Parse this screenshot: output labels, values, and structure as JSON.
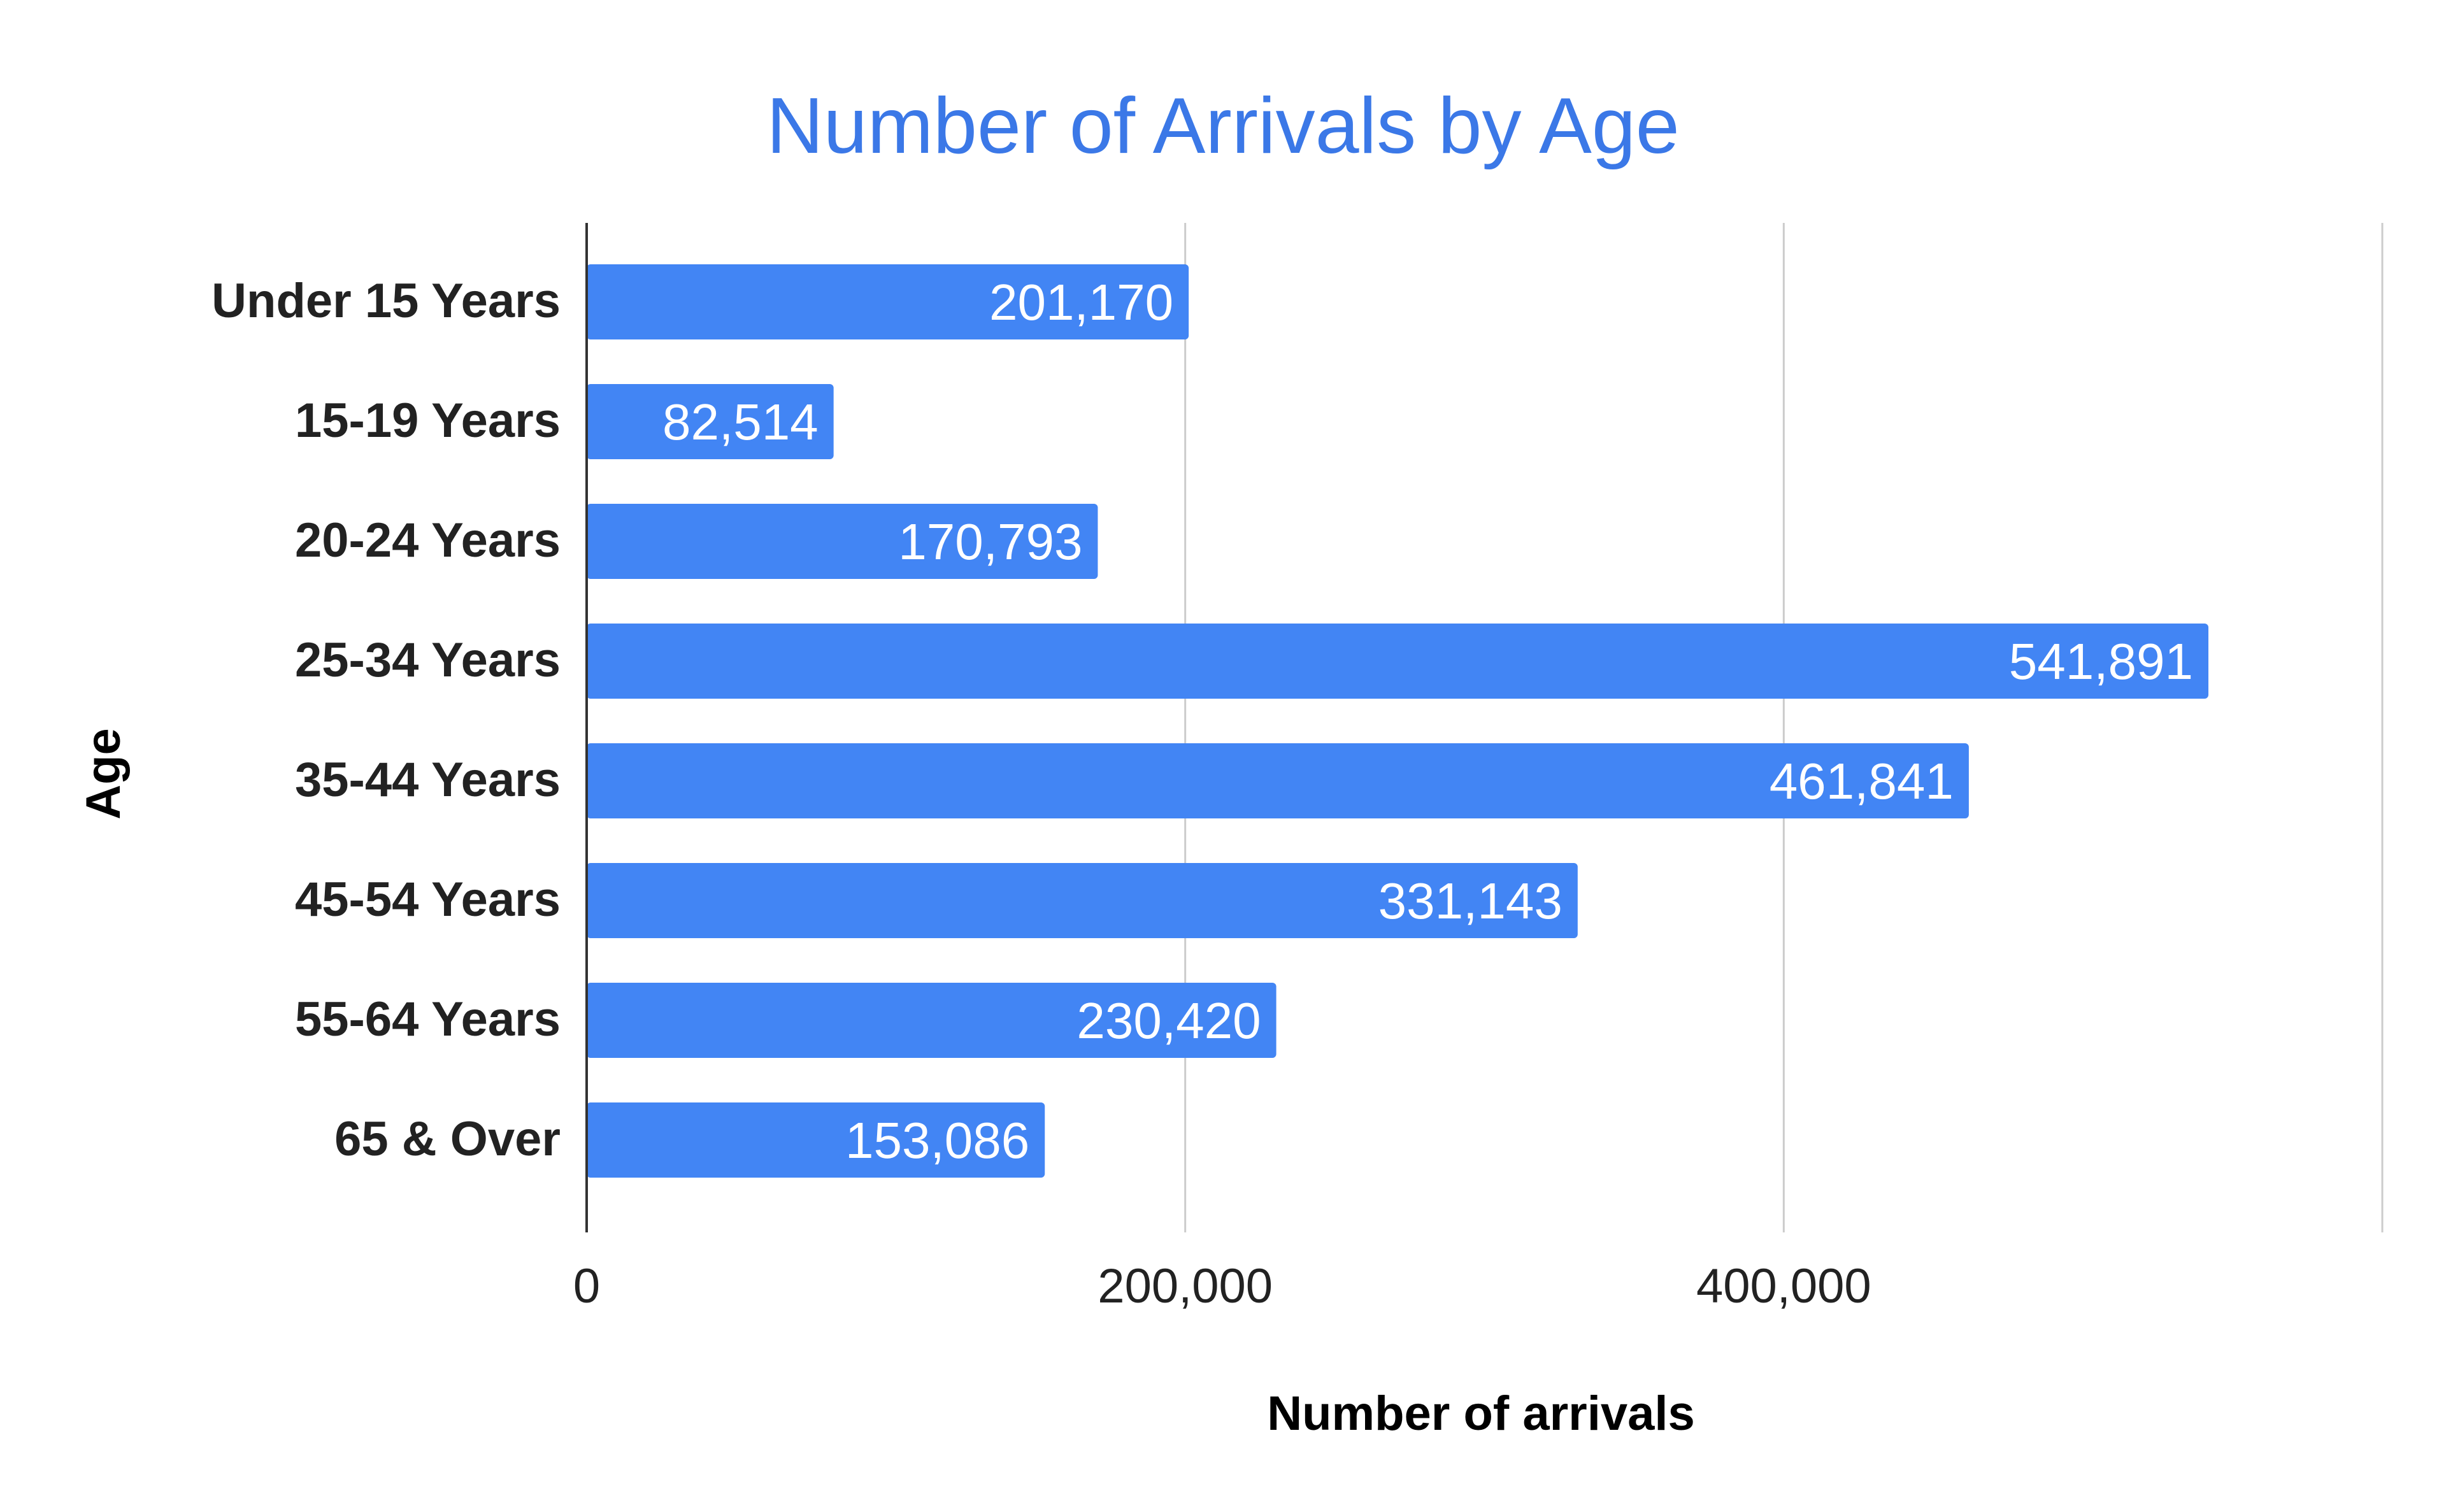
{
  "chart_data": {
    "type": "bar",
    "orientation": "horizontal",
    "title": "Number of Arrivals by Age",
    "xlabel": "Number of arrivals",
    "ylabel": "Age",
    "categories": [
      "Under 15 Years",
      "15-19 Years",
      "20-24 Years",
      "25-34 Years",
      "35-44 Years",
      "45-54 Years",
      "55-64 Years",
      "65 & Over"
    ],
    "values": [
      201170,
      82514,
      170793,
      541891,
      461841,
      331143,
      230420,
      153086
    ],
    "data_labels": [
      "201,170",
      "82,514",
      "170,793",
      "541,891",
      "461,841",
      "331,143",
      "230,420",
      "153,086"
    ],
    "xlim": [
      0,
      600000
    ],
    "xticks": [
      0,
      200000,
      400000
    ],
    "xtick_labels": [
      "0",
      "200,000",
      "400,000"
    ],
    "grid": true,
    "legend": "none",
    "bar_color": "#4285f4",
    "title_color": "#3b78e7"
  }
}
